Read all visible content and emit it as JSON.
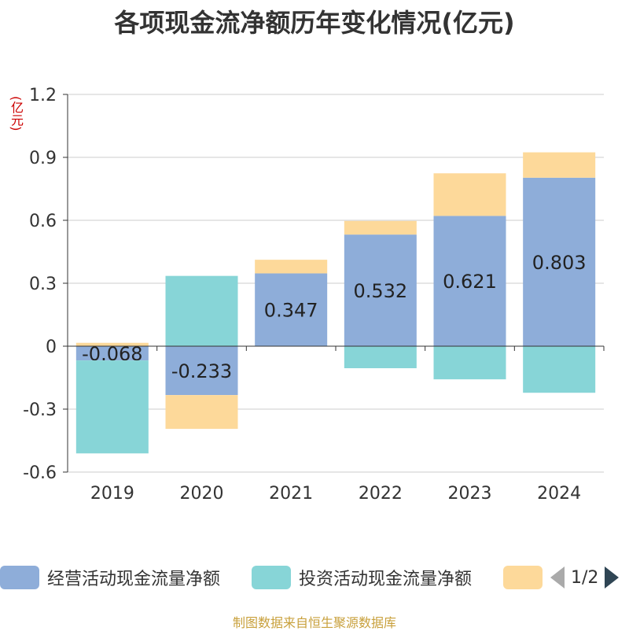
{
  "title": "各项现金流净额历年变化情况(亿元)",
  "unit_label": "(亿元)",
  "source": "制图数据来自恒生聚源数据库",
  "legend": {
    "items": [
      {
        "label": "经营活动现金流量净额",
        "color": "#8eadd9"
      },
      {
        "label": "投资活动现金流量净额",
        "color": "#87d5d7"
      },
      {
        "label": "",
        "color": "#fdd99a"
      }
    ],
    "pager_text": "1/2"
  },
  "chart_data": {
    "type": "bar",
    "stacked": true,
    "categories": [
      "2019",
      "2020",
      "2021",
      "2022",
      "2023",
      "2024"
    ],
    "ylim": [
      -0.6,
      1.2
    ],
    "yticks": [
      "1.2",
      "0.9",
      "0.6",
      "0.3",
      "0",
      "-0.3",
      "-0.6"
    ],
    "ytick_values": [
      1.2,
      0.9,
      0.6,
      0.3,
      0,
      -0.3,
      -0.6
    ],
    "grid": true,
    "series": [
      {
        "name": "经营活动现金流量净额",
        "color": "#8eadd9",
        "values": [
          -0.068,
          -0.233,
          0.347,
          0.532,
          0.621,
          0.803
        ],
        "labels": [
          "-0.068",
          "-0.233",
          "0.347",
          "0.532",
          "0.621",
          "0.803"
        ]
      },
      {
        "name": "投资活动现金流量净额",
        "color": "#87d5d7",
        "values": [
          -0.443,
          0.335,
          0.0,
          -0.105,
          -0.158,
          -0.222
        ]
      },
      {
        "color": "#fdd99a",
        "values": [
          0.016,
          -0.161,
          0.065,
          0.065,
          0.203,
          0.121
        ]
      }
    ]
  }
}
